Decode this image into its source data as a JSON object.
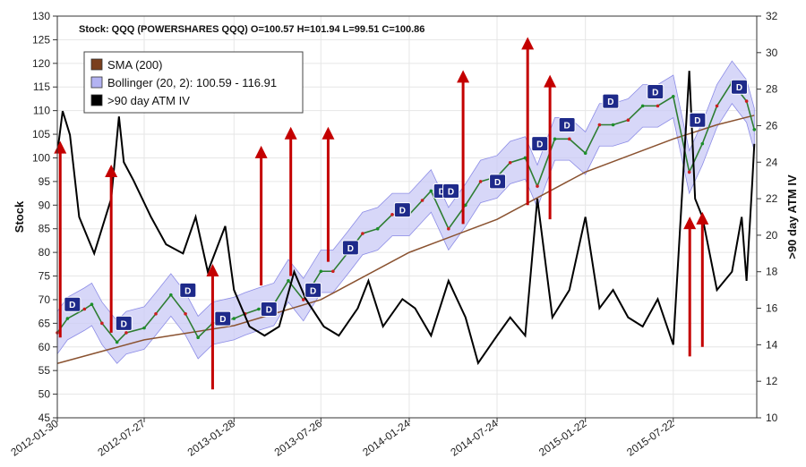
{
  "chart_data": {
    "type": "line",
    "title": "Stock: QQQ (POWERSHARES QQQ) O=100.57  H=101.94  L=99.51  C=100.86",
    "ylabel_left": "Stock",
    "ylabel_right": ">90 day ATM IV",
    "ylim_left": [
      45,
      130
    ],
    "ylim_right": [
      10,
      32
    ],
    "yticks_left": [
      "45",
      "50",
      "55",
      "60",
      "65",
      "70",
      "75",
      "80",
      "85",
      "90",
      "95",
      "100",
      "105",
      "110",
      "115",
      "120",
      "125",
      "130"
    ],
    "yticks_right": [
      "10",
      "12",
      "14",
      "16",
      "18",
      "20",
      "22",
      "24",
      "26",
      "28",
      "30",
      "32"
    ],
    "xticks": [
      "2012-01-30",
      "2012-07-27",
      "2013-01-28",
      "2013-07-26",
      "2014-01-24",
      "2014-07-24",
      "2015-01-22",
      "2015-07-22"
    ],
    "xlim": [
      "2012-01-30",
      "2016-01-10"
    ],
    "grid": true,
    "legend_position": "top-left",
    "legend": [
      {
        "name": "SMA (200)",
        "color": "#7a3f1d"
      },
      {
        "name": "Bollinger (20, 2): 100.59 - 116.91",
        "color": "#b3b3f2"
      },
      {
        "name": ">90 day ATM IV",
        "color": "#000000"
      }
    ],
    "series": {
      "price": [
        {
          "x": "2012-01-30",
          "y": 63
        },
        {
          "x": "2012-02-20",
          "y": 66
        },
        {
          "x": "2012-03-26",
          "y": 68
        },
        {
          "x": "2012-04-10",
          "y": 69
        },
        {
          "x": "2012-05-01",
          "y": 65
        },
        {
          "x": "2012-06-01",
          "y": 61
        },
        {
          "x": "2012-06-20",
          "y": 63
        },
        {
          "x": "2012-07-27",
          "y": 64
        },
        {
          "x": "2012-08-20",
          "y": 67
        },
        {
          "x": "2012-09-20",
          "y": 71
        },
        {
          "x": "2012-10-20",
          "y": 67
        },
        {
          "x": "2012-11-15",
          "y": 62
        },
        {
          "x": "2012-12-15",
          "y": 65
        },
        {
          "x": "2013-01-28",
          "y": 66
        },
        {
          "x": "2013-02-20",
          "y": 67
        },
        {
          "x": "2013-03-20",
          "y": 68
        },
        {
          "x": "2013-04-20",
          "y": 69
        },
        {
          "x": "2013-05-20",
          "y": 74
        },
        {
          "x": "2013-06-20",
          "y": 70
        },
        {
          "x": "2013-07-26",
          "y": 76
        },
        {
          "x": "2013-08-20",
          "y": 76
        },
        {
          "x": "2013-09-20",
          "y": 80
        },
        {
          "x": "2013-10-20",
          "y": 84
        },
        {
          "x": "2013-11-20",
          "y": 85
        },
        {
          "x": "2013-12-20",
          "y": 88
        },
        {
          "x": "2014-01-24",
          "y": 88
        },
        {
          "x": "2014-02-20",
          "y": 91
        },
        {
          "x": "2014-03-10",
          "y": 93
        },
        {
          "x": "2014-04-15",
          "y": 85
        },
        {
          "x": "2014-05-20",
          "y": 90
        },
        {
          "x": "2014-06-20",
          "y": 95
        },
        {
          "x": "2014-07-24",
          "y": 96
        },
        {
          "x": "2014-08-20",
          "y": 99
        },
        {
          "x": "2014-09-20",
          "y": 100
        },
        {
          "x": "2014-10-15",
          "y": 94
        },
        {
          "x": "2014-11-20",
          "y": 104
        },
        {
          "x": "2014-12-20",
          "y": 104
        },
        {
          "x": "2015-01-22",
          "y": 101
        },
        {
          "x": "2015-02-20",
          "y": 107
        },
        {
          "x": "2015-03-20",
          "y": 107
        },
        {
          "x": "2015-04-20",
          "y": 108
        },
        {
          "x": "2015-05-20",
          "y": 111
        },
        {
          "x": "2015-06-20",
          "y": 111
        },
        {
          "x": "2015-07-22",
          "y": 113
        },
        {
          "x": "2015-08-24",
          "y": 97
        },
        {
          "x": "2015-09-20",
          "y": 103
        },
        {
          "x": "2015-10-20",
          "y": 111
        },
        {
          "x": "2015-11-20",
          "y": 116
        },
        {
          "x": "2015-12-20",
          "y": 112
        },
        {
          "x": "2016-01-05",
          "y": 106
        }
      ],
      "sma200": [
        {
          "x": "2012-01-30",
          "y": 56.5
        },
        {
          "x": "2012-07-27",
          "y": 61.5
        },
        {
          "x": "2013-01-28",
          "y": 64.5
        },
        {
          "x": "2013-07-26",
          "y": 70
        },
        {
          "x": "2014-01-24",
          "y": 80
        },
        {
          "x": "2014-07-24",
          "y": 87
        },
        {
          "x": "2015-01-22",
          "y": 97
        },
        {
          "x": "2015-07-22",
          "y": 104
        },
        {
          "x": "2015-10-20",
          "y": 107
        },
        {
          "x": "2016-01-05",
          "y": 109
        }
      ],
      "iv": [
        {
          "x": "2012-01-30",
          "y": 24.5
        },
        {
          "x": "2012-02-10",
          "y": 26.8
        },
        {
          "x": "2012-02-25",
          "y": 25.5
        },
        {
          "x": "2012-03-15",
          "y": 21
        },
        {
          "x": "2012-04-15",
          "y": 19
        },
        {
          "x": "2012-05-20",
          "y": 22
        },
        {
          "x": "2012-06-05",
          "y": 26.5
        },
        {
          "x": "2012-06-15",
          "y": 24
        },
        {
          "x": "2012-07-05",
          "y": 23
        },
        {
          "x": "2012-08-10",
          "y": 21
        },
        {
          "x": "2012-09-10",
          "y": 19.5
        },
        {
          "x": "2012-10-15",
          "y": 19
        },
        {
          "x": "2012-11-10",
          "y": 21
        },
        {
          "x": "2012-12-05",
          "y": 18
        },
        {
          "x": "2013-01-10",
          "y": 20.5
        },
        {
          "x": "2013-01-28",
          "y": 17
        },
        {
          "x": "2013-03-01",
          "y": 15
        },
        {
          "x": "2013-04-01",
          "y": 14.5
        },
        {
          "x": "2013-05-01",
          "y": 15
        },
        {
          "x": "2013-06-01",
          "y": 18
        },
        {
          "x": "2013-06-25",
          "y": 16.5
        },
        {
          "x": "2013-08-01",
          "y": 15
        },
        {
          "x": "2013-09-01",
          "y": 14.5
        },
        {
          "x": "2013-10-10",
          "y": 16
        },
        {
          "x": "2013-11-01",
          "y": 17.5
        },
        {
          "x": "2013-12-01",
          "y": 15
        },
        {
          "x": "2014-01-10",
          "y": 16.5
        },
        {
          "x": "2014-02-05",
          "y": 16
        },
        {
          "x": "2014-03-10",
          "y": 14.5
        },
        {
          "x": "2014-04-15",
          "y": 17.5
        },
        {
          "x": "2014-05-20",
          "y": 15.5
        },
        {
          "x": "2014-06-15",
          "y": 13
        },
        {
          "x": "2014-07-24",
          "y": 14.5
        },
        {
          "x": "2014-08-20",
          "y": 15.5
        },
        {
          "x": "2014-09-20",
          "y": 14.5
        },
        {
          "x": "2014-10-15",
          "y": 22
        },
        {
          "x": "2014-11-15",
          "y": 15.5
        },
        {
          "x": "2014-12-20",
          "y": 17
        },
        {
          "x": "2015-01-22",
          "y": 21
        },
        {
          "x": "2015-02-20",
          "y": 16
        },
        {
          "x": "2015-03-20",
          "y": 17
        },
        {
          "x": "2015-04-20",
          "y": 15.5
        },
        {
          "x": "2015-05-20",
          "y": 15
        },
        {
          "x": "2015-06-20",
          "y": 16.5
        },
        {
          "x": "2015-07-22",
          "y": 14
        },
        {
          "x": "2015-08-24",
          "y": 29
        },
        {
          "x": "2015-09-05",
          "y": 22
        },
        {
          "x": "2015-09-20",
          "y": 21
        },
        {
          "x": "2015-10-20",
          "y": 17
        },
        {
          "x": "2015-11-20",
          "y": 18
        },
        {
          "x": "2015-12-10",
          "y": 21
        },
        {
          "x": "2015-12-20",
          "y": 17.5
        },
        {
          "x": "2016-01-01",
          "y": 23
        },
        {
          "x": "2016-01-05",
          "y": 25
        }
      ]
    },
    "signal_markers": [
      {
        "label": "D",
        "x": "2012-03-01",
        "y": 69
      },
      {
        "label": "D",
        "x": "2012-06-15",
        "y": 65
      },
      {
        "label": "D",
        "x": "2012-10-25",
        "y": 72
      },
      {
        "label": "D",
        "x": "2013-01-05",
        "y": 66
      },
      {
        "label": "D",
        "x": "2013-04-10",
        "y": 68
      },
      {
        "label": "D",
        "x": "2013-07-10",
        "y": 72
      },
      {
        "label": "D",
        "x": "2013-09-25",
        "y": 81
      },
      {
        "label": "D",
        "x": "2014-01-10",
        "y": 89
      },
      {
        "label": "D",
        "x": "2014-04-01",
        "y": 93
      },
      {
        "label": "D",
        "x": "2014-04-20",
        "y": 93
      },
      {
        "label": "D",
        "x": "2014-07-25",
        "y": 95
      },
      {
        "label": "D",
        "x": "2014-10-20",
        "y": 103
      },
      {
        "label": "D",
        "x": "2014-12-15",
        "y": 107
      },
      {
        "label": "D",
        "x": "2015-03-15",
        "y": 112
      },
      {
        "label": "D",
        "x": "2015-06-15",
        "y": 114
      },
      {
        "label": "D",
        "x": "2015-09-10",
        "y": 108
      },
      {
        "label": "D",
        "x": "2015-12-05",
        "y": 115
      }
    ],
    "arrows": [
      {
        "x": "2012-02-05",
        "from": 62,
        "to": 103
      },
      {
        "x": "2012-05-20",
        "from": 63,
        "to": 98
      },
      {
        "x": "2012-12-15",
        "from": 51,
        "to": 77
      },
      {
        "x": "2013-03-25",
        "from": 73,
        "to": 102
      },
      {
        "x": "2013-05-25",
        "from": 75,
        "to": 106
      },
      {
        "x": "2013-08-10",
        "from": 78,
        "to": 106
      },
      {
        "x": "2014-05-15",
        "from": 86,
        "to": 118
      },
      {
        "x": "2014-09-25",
        "from": 90,
        "to": 125
      },
      {
        "x": "2014-11-10",
        "from": 87,
        "to": 117
      },
      {
        "x": "2015-08-25",
        "from": 58,
        "to": 87
      },
      {
        "x": "2015-09-20",
        "from": 60,
        "to": 88
      }
    ]
  }
}
